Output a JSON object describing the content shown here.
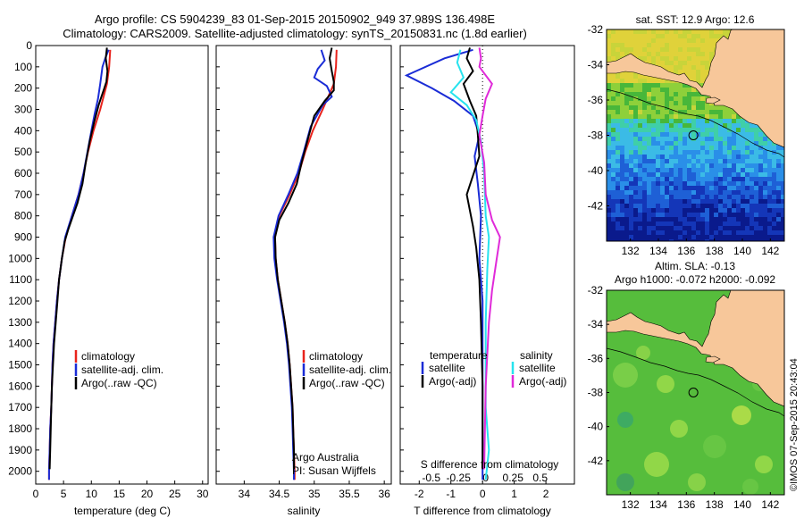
{
  "header": {
    "line1": "Argo profile: CS 5904239_83 01-Sep-2015 20150902_949 37.989S 136.498E",
    "line2": "Climatology: CARS2009. Satellite-adjusted climatology: synTS_20150831.nc (1.8d earlier)"
  },
  "colors": {
    "climatology": "#e8231c",
    "satellite": "#1a2cd6",
    "argo": "#000000",
    "sat_salinity": "#27e3ee",
    "argo_adj": "#e02ad9",
    "land": "#f7c79a"
  },
  "chart_data": [
    {
      "type": "line",
      "id": "temperature",
      "xlabel": "temperature (deg C)",
      "ylabel": "",
      "xlim": [
        0,
        31
      ],
      "ylim": [
        2060,
        0
      ],
      "xticks": [
        0,
        5,
        10,
        15,
        20,
        25,
        30
      ],
      "yticks": [
        0,
        100,
        200,
        300,
        400,
        500,
        600,
        700,
        800,
        900,
        1000,
        1100,
        1200,
        1300,
        1400,
        1500,
        1600,
        1700,
        1800,
        1900,
        2000
      ],
      "legend": [
        "climatology",
        "satellite-adj. clim.",
        "Argo(..raw -QC)"
      ],
      "series": [
        {
          "name": "climatology",
          "color": "#e8231c",
          "points": [
            [
              13.4,
              20
            ],
            [
              13.2,
              100
            ],
            [
              12.8,
              180
            ],
            [
              11.6,
              300
            ],
            [
              10.4,
              400
            ],
            [
              9.4,
              500
            ],
            [
              8.6,
              600
            ],
            [
              7.7,
              700
            ],
            [
              6.5,
              800
            ],
            [
              5.4,
              900
            ],
            [
              4.7,
              1000
            ],
            [
              4.2,
              1100
            ],
            [
              3.8,
              1200
            ],
            [
              3.5,
              1300
            ],
            [
              3.2,
              1400
            ],
            [
              3.0,
              1500
            ],
            [
              2.9,
              1600
            ],
            [
              2.8,
              1700
            ],
            [
              2.6,
              1800
            ],
            [
              2.5,
              1900
            ],
            [
              2.4,
              2000
            ],
            [
              2.4,
              2040
            ]
          ]
        },
        {
          "name": "satellite-adj. clim.",
          "color": "#1a2cd6",
          "points": [
            [
              13.1,
              20
            ],
            [
              12.5,
              60
            ],
            [
              12.0,
              100
            ],
            [
              11.6,
              180
            ],
            [
              11.2,
              250
            ],
            [
              10.6,
              320
            ],
            [
              10.0,
              400
            ],
            [
              9.3,
              500
            ],
            [
              8.6,
              600
            ],
            [
              7.7,
              700
            ],
            [
              6.5,
              800
            ],
            [
              5.3,
              900
            ],
            [
              4.7,
              1000
            ],
            [
              4.2,
              1100
            ],
            [
              3.8,
              1200
            ],
            [
              3.5,
              1300
            ],
            [
              3.2,
              1400
            ],
            [
              3.0,
              1500
            ],
            [
              2.9,
              1600
            ],
            [
              2.8,
              1700
            ],
            [
              2.6,
              1800
            ],
            [
              2.5,
              1900
            ],
            [
              2.4,
              2000
            ],
            [
              2.4,
              2040
            ]
          ]
        },
        {
          "name": "Argo(..raw -QC)",
          "color": "#000000",
          "points": [
            [
              12.8,
              10
            ],
            [
              12.6,
              60
            ],
            [
              12.9,
              120
            ],
            [
              12.7,
              170
            ],
            [
              12.2,
              210
            ],
            [
              11.3,
              280
            ],
            [
              10.5,
              360
            ],
            [
              9.7,
              450
            ],
            [
              9.0,
              550
            ],
            [
              8.4,
              650
            ],
            [
              7.5,
              740
            ],
            [
              6.7,
              800
            ],
            [
              5.9,
              860
            ],
            [
              5.2,
              920
            ],
            [
              4.7,
              1000
            ],
            [
              4.2,
              1100
            ],
            [
              3.9,
              1200
            ],
            [
              3.6,
              1300
            ],
            [
              3.3,
              1400
            ],
            [
              3.1,
              1500
            ],
            [
              2.9,
              1600
            ],
            [
              2.8,
              1700
            ],
            [
              2.7,
              1800
            ],
            [
              2.6,
              1900
            ],
            [
              2.5,
              1990
            ]
          ]
        }
      ]
    },
    {
      "type": "line",
      "id": "salinity",
      "xlabel": "salinity",
      "ylabel": "",
      "xlim": [
        33.6,
        36.1
      ],
      "ylim": [
        2060,
        0
      ],
      "xticks": [
        34,
        34.5,
        35,
        35.5,
        36
      ],
      "legend": [
        "climatology",
        "satellite-adj. clim.",
        "Argo(..raw -QC)"
      ],
      "annotation": [
        "Argo Australia",
        "PI: Susan Wijffels"
      ],
      "series": [
        {
          "name": "climatology",
          "color": "#e8231c",
          "points": [
            [
              35.32,
              20
            ],
            [
              35.31,
              100
            ],
            [
              35.28,
              180
            ],
            [
              35.12,
              300
            ],
            [
              34.98,
              400
            ],
            [
              34.87,
              500
            ],
            [
              34.78,
              600
            ],
            [
              34.65,
              700
            ],
            [
              34.5,
              800
            ],
            [
              34.44,
              900
            ],
            [
              34.45,
              1000
            ],
            [
              34.48,
              1100
            ],
            [
              34.53,
              1200
            ],
            [
              34.58,
              1300
            ],
            [
              34.62,
              1400
            ],
            [
              34.65,
              1500
            ],
            [
              34.67,
              1600
            ],
            [
              34.69,
              1700
            ],
            [
              34.7,
              1800
            ],
            [
              34.71,
              1900
            ],
            [
              34.72,
              2000
            ],
            [
              34.72,
              2040
            ]
          ]
        },
        {
          "name": "satellite-adj. clim.",
          "color": "#1a2cd6",
          "points": [
            [
              35.1,
              20
            ],
            [
              35.15,
              70
            ],
            [
              35.05,
              110
            ],
            [
              35.0,
              150
            ],
            [
              35.18,
              190
            ],
            [
              35.25,
              240
            ],
            [
              35.12,
              280
            ],
            [
              34.95,
              380
            ],
            [
              34.85,
              500
            ],
            [
              34.76,
              600
            ],
            [
              34.63,
              700
            ],
            [
              34.49,
              800
            ],
            [
              34.42,
              900
            ],
            [
              34.43,
              1000
            ],
            [
              34.47,
              1100
            ],
            [
              34.52,
              1200
            ],
            [
              34.57,
              1300
            ],
            [
              34.61,
              1400
            ],
            [
              34.64,
              1500
            ],
            [
              34.66,
              1600
            ],
            [
              34.68,
              1700
            ],
            [
              34.69,
              1800
            ],
            [
              34.7,
              1900
            ],
            [
              34.71,
              2000
            ],
            [
              34.71,
              2040
            ]
          ]
        },
        {
          "name": "Argo(..raw -QC)",
          "color": "#000000",
          "points": [
            [
              35.25,
              10
            ],
            [
              35.22,
              60
            ],
            [
              35.25,
              120
            ],
            [
              35.28,
              170
            ],
            [
              35.28,
              210
            ],
            [
              35.15,
              260
            ],
            [
              35.0,
              330
            ],
            [
              34.9,
              450
            ],
            [
              34.82,
              550
            ],
            [
              34.75,
              650
            ],
            [
              34.63,
              740
            ],
            [
              34.5,
              820
            ],
            [
              34.44,
              900
            ],
            [
              34.45,
              1000
            ],
            [
              34.48,
              1100
            ],
            [
              34.53,
              1200
            ],
            [
              34.58,
              1300
            ],
            [
              34.62,
              1400
            ],
            [
              34.65,
              1500
            ],
            [
              34.67,
              1600
            ],
            [
              34.69,
              1700
            ],
            [
              34.7,
              1800
            ],
            [
              34.71,
              1900
            ],
            [
              34.71,
              1990
            ]
          ]
        }
      ]
    },
    {
      "type": "line",
      "id": "differences",
      "xlabel": "T difference from climatology",
      "xlabel_top": "S difference from climatology",
      "xlim": [
        -2.6,
        2.9
      ],
      "ylim": [
        2060,
        0
      ],
      "xticks_T": [
        -2,
        -1,
        0,
        1,
        2
      ],
      "xticks_S": [
        "-0.5",
        "-0.25",
        "0",
        "0.25",
        "0.5"
      ],
      "legend_headers": [
        "temperature",
        "salinity"
      ],
      "legend": [
        "satellite",
        "Argo(-adj)",
        "satellite",
        "Argo(-adj)"
      ],
      "series": [
        {
          "name": "satellite",
          "color": "#1a2cd6",
          "points": [
            [
              -0.3,
              20
            ],
            [
              -1.2,
              60
            ],
            [
              -2.4,
              140
            ],
            [
              -1.6,
              200
            ],
            [
              -0.9,
              260
            ],
            [
              -0.3,
              330
            ],
            [
              -0.1,
              420
            ],
            [
              -0.25,
              520
            ],
            [
              -0.15,
              650
            ],
            [
              -0.05,
              800
            ],
            [
              -0.1,
              1000
            ],
            [
              0,
              1200
            ],
            [
              0,
              1500
            ],
            [
              0,
              2040
            ]
          ]
        },
        {
          "name": "Argo(-adj)",
          "color": "#000000",
          "points": [
            [
              -0.4,
              10
            ],
            [
              -0.5,
              60
            ],
            [
              -0.3,
              120
            ],
            [
              -0.6,
              180
            ],
            [
              -0.4,
              260
            ],
            [
              -0.2,
              330
            ],
            [
              -0.15,
              420
            ],
            [
              -0.1,
              520
            ],
            [
              -0.5,
              700
            ],
            [
              -0.3,
              850
            ],
            [
              -0.2,
              950
            ],
            [
              -0.1,
              1100
            ],
            [
              -0.05,
              1300
            ],
            [
              0,
              1600
            ],
            [
              0,
              1990
            ]
          ]
        },
        {
          "name": "satellite",
          "color": "#27e3ee",
          "points": [
            [
              -0.7,
              20
            ],
            [
              -0.8,
              80
            ],
            [
              -0.6,
              150
            ],
            [
              -1.0,
              220
            ],
            [
              -0.5,
              280
            ],
            [
              -0.2,
              350
            ],
            [
              -0.05,
              450
            ],
            [
              0.05,
              600
            ],
            [
              0.1,
              800
            ],
            [
              0.2,
              900
            ],
            [
              0.15,
              1050
            ],
            [
              0.1,
              1300
            ],
            [
              0.1,
              1700
            ],
            [
              0.2,
              1900
            ],
            [
              0.1,
              2040
            ]
          ]
        },
        {
          "name": "Argo(-adj)",
          "color": "#e02ad9",
          "points": [
            [
              -0.1,
              10
            ],
            [
              -0.05,
              60
            ],
            [
              -0.1,
              100
            ],
            [
              0.3,
              180
            ],
            [
              0.1,
              250
            ],
            [
              0.0,
              330
            ],
            [
              -0.1,
              420
            ],
            [
              0.05,
              550
            ],
            [
              0.1,
              700
            ],
            [
              0.3,
              820
            ],
            [
              0.55,
              900
            ],
            [
              0.45,
              1000
            ],
            [
              0.3,
              1150
            ],
            [
              0.2,
              1300
            ],
            [
              0.1,
              1600
            ],
            [
              0.05,
              1990
            ]
          ]
        }
      ]
    },
    {
      "type": "heatmap",
      "id": "sst_map",
      "title": "sat. SST: 12.9  Argo: 12.6",
      "xlim": [
        130.3,
        143
      ],
      "ylim": [
        -44,
        -32
      ],
      "xticks": [
        132,
        134,
        136,
        138,
        140,
        142
      ],
      "yticks": [
        -32,
        -34,
        -36,
        -38,
        -40,
        -42
      ],
      "marker": [
        136.5,
        -38
      ]
    },
    {
      "type": "heatmap",
      "id": "sla_map",
      "title": "Altim. SLA: -0.13",
      "subtitle": "Argo h1000: -0.072 h2000: -0.092",
      "xlim": [
        130.3,
        143
      ],
      "ylim": [
        -44,
        -32
      ],
      "xticks": [
        132,
        134,
        136,
        138,
        140,
        142
      ],
      "yticks": [
        -32,
        -34,
        -36,
        -38,
        -40,
        -42
      ],
      "marker": [
        136.5,
        -38
      ]
    }
  ],
  "footer": {
    "credit": "©IMOS 07-Sep-2015 20:43:04"
  }
}
